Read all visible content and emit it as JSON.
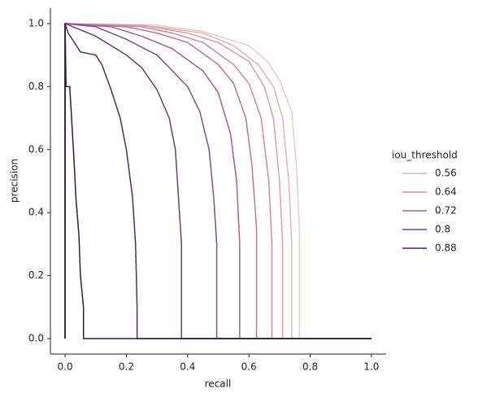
{
  "chart_data": {
    "type": "line",
    "x_label": "recall",
    "y_label": "precision",
    "xlim": [
      -0.048,
      1.048
    ],
    "ylim": [
      -0.049,
      1.049
    ],
    "xticks": [
      {
        "value": 0,
        "label": "0.0"
      },
      {
        "value": 0.2,
        "label": "0.2"
      },
      {
        "value": 0.4,
        "label": "0.4"
      },
      {
        "value": 0.6,
        "label": "0.6"
      },
      {
        "value": 0.8,
        "label": "0.8"
      },
      {
        "value": 1,
        "label": "1.0"
      }
    ],
    "yticks": [
      {
        "value": 0,
        "label": "0.0"
      },
      {
        "value": 0.2,
        "label": "0.2"
      },
      {
        "value": 0.4,
        "label": "0.4"
      },
      {
        "value": 0.6,
        "label": "0.6"
      },
      {
        "value": 0.8,
        "label": "0.8"
      },
      {
        "value": 1,
        "label": "1.0"
      }
    ],
    "legend": {
      "title": "iou_threshold",
      "entries": [
        {
          "label": 0.56,
          "color": "#e6b5b0"
        },
        {
          "label": 0.64,
          "color": "#cf8fa2"
        },
        {
          "label": 0.72,
          "color": "#a96695"
        },
        {
          "label": 0.8,
          "color": "#774682"
        },
        {
          "label": 0.88,
          "color": "#3d2650"
        }
      ]
    },
    "series": [
      {
        "color": "#ecccc4",
        "x": [
          0,
          0,
          0.3,
          0.45,
          0.6,
          0.66,
          0.7,
          0.74,
          0.755,
          0.765,
          0.765,
          1
        ],
        "values": [
          0,
          1,
          0.995,
          0.975,
          0.93,
          0.88,
          0.82,
          0.72,
          0.55,
          0.35,
          0,
          0
        ]
      },
      {
        "color": "#e6b5b0",
        "x": [
          0,
          0,
          0.3,
          0.45,
          0.55,
          0.63,
          0.68,
          0.71,
          0.73,
          0.74,
          0.74,
          1
        ],
        "values": [
          0,
          1,
          0.99,
          0.97,
          0.93,
          0.87,
          0.8,
          0.7,
          0.5,
          0.3,
          0,
          0
        ]
      },
      {
        "color": "#dba0a6",
        "x": [
          0,
          0,
          0.25,
          0.4,
          0.5,
          0.6,
          0.65,
          0.68,
          0.7,
          0.71,
          0.71,
          1
        ],
        "values": [
          0,
          1,
          0.995,
          0.97,
          0.94,
          0.88,
          0.8,
          0.7,
          0.5,
          0.3,
          0,
          0
        ]
      },
      {
        "color": "#cc8ba0",
        "x": [
          0,
          0,
          0.25,
          0.35,
          0.45,
          0.55,
          0.6,
          0.64,
          0.665,
          0.675,
          0.675,
          1
        ],
        "values": [
          0,
          1,
          0.99,
          0.97,
          0.94,
          0.87,
          0.81,
          0.7,
          0.5,
          0.3,
          0,
          0
        ]
      },
      {
        "color": "#b8769a",
        "x": [
          0,
          0,
          0.2,
          0.3,
          0.4,
          0.5,
          0.55,
          0.59,
          0.61,
          0.625,
          0.625,
          1
        ],
        "values": [
          0,
          1,
          0.99,
          0.97,
          0.94,
          0.87,
          0.81,
          0.7,
          0.55,
          0.35,
          0,
          0
        ]
      },
      {
        "color": "#a06291",
        "x": [
          0,
          0,
          0.15,
          0.25,
          0.35,
          0.45,
          0.5,
          0.54,
          0.56,
          0.57,
          0.57,
          1
        ],
        "values": [
          0,
          1,
          0.99,
          0.96,
          0.92,
          0.85,
          0.78,
          0.65,
          0.5,
          0.3,
          0,
          0
        ]
      },
      {
        "color": "#864f86",
        "x": [
          0,
          0,
          0.1,
          0.2,
          0.3,
          0.35,
          0.4,
          0.44,
          0.47,
          0.485,
          0.495,
          0.495,
          1
        ],
        "values": [
          0,
          1,
          0.99,
          0.95,
          0.9,
          0.85,
          0.8,
          0.72,
          0.6,
          0.45,
          0.3,
          0,
          0
        ]
      },
      {
        "color": "#6a3e76",
        "x": [
          0,
          0,
          0.05,
          0.1,
          0.2,
          0.25,
          0.3,
          0.34,
          0.36,
          0.37,
          0.38,
          0.38,
          1
        ],
        "values": [
          0,
          1,
          0.98,
          0.96,
          0.9,
          0.86,
          0.79,
          0.7,
          0.6,
          0.45,
          0.3,
          0,
          0
        ]
      },
      {
        "color": "#4c2e5f",
        "x": [
          0,
          0,
          0.01,
          0.05,
          0.1,
          0.12,
          0.15,
          0.18,
          0.2,
          0.22,
          0.23,
          0.235,
          0.235,
          1
        ],
        "values": [
          0,
          1,
          0.97,
          0.91,
          0.9,
          0.87,
          0.79,
          0.7,
          0.6,
          0.45,
          0.3,
          0.1,
          0,
          0
        ]
      },
      {
        "color": "#2e1e3e",
        "x": [
          0,
          0,
          0.003,
          0.015,
          0.02,
          0.03,
          0.035,
          0.045,
          0.05,
          0.06,
          0.06,
          1
        ],
        "values": [
          0,
          1,
          0.8,
          0.8,
          0.72,
          0.55,
          0.45,
          0.33,
          0.2,
          0.1,
          0,
          0
        ]
      }
    ]
  }
}
